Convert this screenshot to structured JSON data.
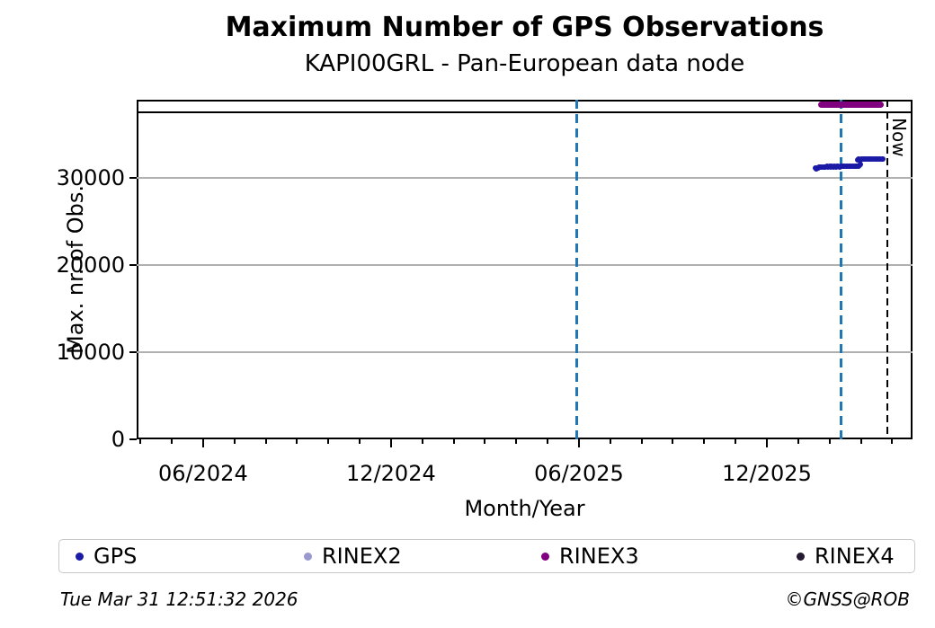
{
  "footer": {
    "timestamp": "Tue Mar 31 12:51:32 2026",
    "credit": "©GNSS@ROB"
  },
  "chart_data": {
    "type": "scatter",
    "title": "Maximum Number of GPS Observations",
    "subtitle": "KAPI00GRL - Pan-European data node",
    "xlabel": "Month/Year",
    "ylabel": "Max. nr. of Obs.",
    "now_label": "Now",
    "grid": "horizontal-only",
    "legend_position": "bottom",
    "colors": {
      "grid": "#b0b0b0",
      "axis": "#000000"
    },
    "x_axis": {
      "unit": "months_since_2024-01-01",
      "min": 2.88,
      "max": 27.65,
      "minor_tick_step": 1,
      "major_ticks": [
        {
          "m": 5,
          "label": "06/2024"
        },
        {
          "m": 11,
          "label": "12/2024"
        },
        {
          "m": 17,
          "label": "06/2025"
        },
        {
          "m": 23,
          "label": "12/2025"
        }
      ]
    },
    "y_axis": {
      "min": 0,
      "max": 39000,
      "ticks": [
        {
          "v": 0,
          "label": "0"
        },
        {
          "v": 10000,
          "label": "10000"
        },
        {
          "v": 20000,
          "label": "20000"
        },
        {
          "v": 30000,
          "label": "30000"
        }
      ]
    },
    "hline": {
      "v": 37550,
      "color": "#000000",
      "thickness": 2.5
    },
    "vlines": [
      {
        "name": "period-line-jun-2025",
        "m": 16.94,
        "color": "#1f77b4",
        "width": 3,
        "dash": [
          10,
          6
        ]
      },
      {
        "name": "period-line-feb-2026",
        "m": 25.38,
        "color": "#1f77b4",
        "width": 3,
        "dash": [
          10,
          6
        ]
      },
      {
        "name": "now-line",
        "m": 26.85,
        "color": "#000000",
        "width": 2.5,
        "dash": [
          8,
          5
        ]
      }
    ],
    "series": [
      {
        "name": "GPS",
        "color": "#1a1aa6",
        "style": "points",
        "points": [
          [
            24.56,
            31150
          ],
          [
            24.58,
            31080
          ],
          [
            24.61,
            31190
          ],
          [
            24.64,
            31120
          ],
          [
            24.67,
            31260
          ],
          [
            24.7,
            31280
          ],
          [
            24.73,
            31240
          ],
          [
            24.76,
            31300
          ],
          [
            24.8,
            31290
          ],
          [
            24.84,
            31310
          ],
          [
            24.88,
            31280
          ],
          [
            24.92,
            31320
          ],
          [
            24.96,
            31300
          ],
          [
            25.0,
            31330
          ],
          [
            25.04,
            31300
          ],
          [
            25.08,
            31320
          ],
          [
            25.12,
            31310
          ],
          [
            25.16,
            31330
          ],
          [
            25.2,
            31300
          ],
          [
            25.24,
            31320
          ],
          [
            25.28,
            31330
          ],
          [
            25.32,
            31310
          ],
          [
            25.36,
            31330
          ],
          [
            25.4,
            31320
          ],
          [
            25.44,
            31340
          ],
          [
            25.48,
            31320
          ],
          [
            25.52,
            31330
          ],
          [
            25.56,
            31340
          ],
          [
            25.6,
            31330
          ],
          [
            25.64,
            31350
          ],
          [
            25.68,
            31330
          ],
          [
            25.72,
            31340
          ],
          [
            25.76,
            31350
          ],
          [
            25.8,
            31330
          ],
          [
            25.84,
            31350
          ],
          [
            25.88,
            31340
          ],
          [
            25.92,
            31360
          ],
          [
            25.96,
            31420
          ],
          [
            25.99,
            31550
          ],
          [
            25.9,
            32120
          ],
          [
            25.94,
            32150
          ],
          [
            25.98,
            32130
          ],
          [
            26.02,
            32160
          ],
          [
            26.06,
            32140
          ],
          [
            26.1,
            32170
          ],
          [
            26.14,
            32150
          ],
          [
            26.18,
            32180
          ],
          [
            26.22,
            32160
          ],
          [
            26.26,
            32170
          ],
          [
            26.3,
            32190
          ],
          [
            26.34,
            32170
          ],
          [
            26.38,
            32180
          ],
          [
            26.42,
            32160
          ],
          [
            26.46,
            32190
          ],
          [
            26.5,
            32200
          ],
          [
            26.54,
            32220
          ],
          [
            26.58,
            32230
          ],
          [
            26.62,
            32200
          ],
          [
            26.66,
            32190
          ],
          [
            26.7,
            32210
          ]
        ]
      },
      {
        "name": "RINEX2",
        "color": "#9999cf",
        "style": "points",
        "points": []
      },
      {
        "name": "RINEX3",
        "color": "#800080",
        "style": "thick-line",
        "points": [
          [
            24.64,
            38420
          ],
          [
            26.73,
            38420
          ]
        ]
      },
      {
        "name": "RINEX4",
        "color": "#261932",
        "style": "points",
        "points": []
      }
    ]
  }
}
